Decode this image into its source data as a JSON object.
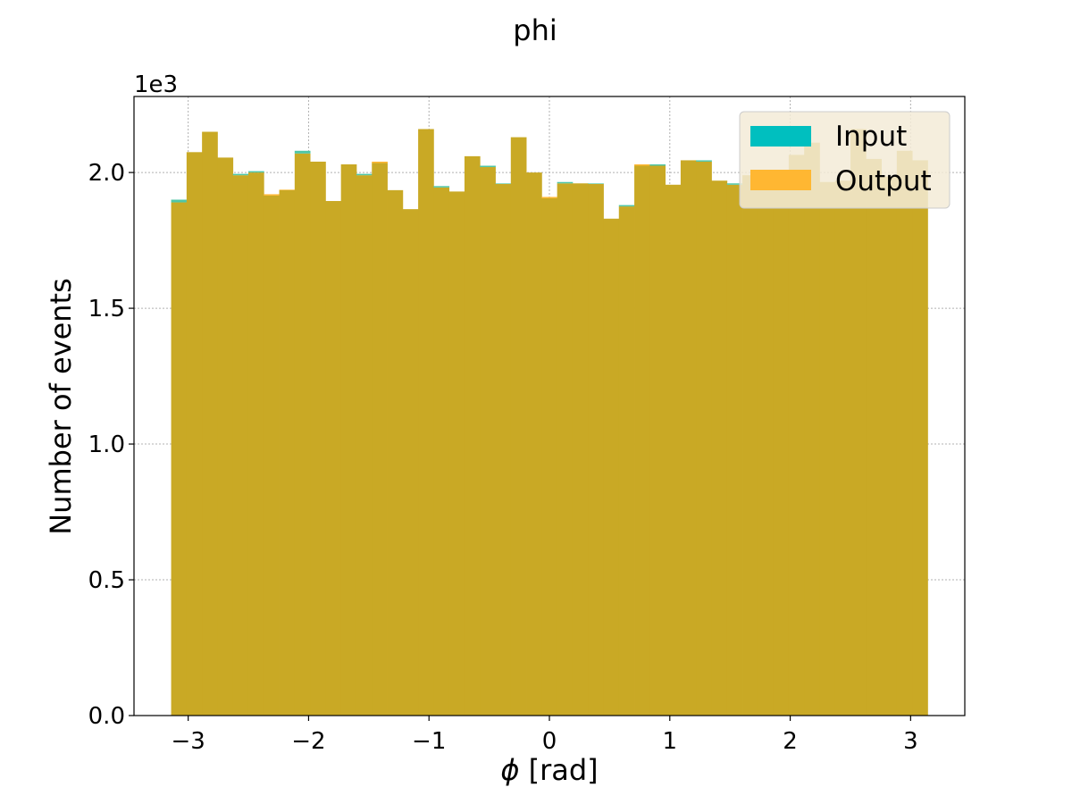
{
  "chart_data": {
    "type": "bar",
    "title": "phi",
    "xlabel_symbol": "ϕ",
    "xlabel_unit": " [rad]",
    "ylabel": "Number of events",
    "y_offset_label": "1e3",
    "y_scale": 1000,
    "xlim": [
      -3.45,
      3.45
    ],
    "ylim": [
      0,
      2280
    ],
    "bin_range": [
      -3.1416,
      3.1416
    ],
    "xticks": [
      -3,
      -2,
      -1,
      0,
      1,
      2,
      3
    ],
    "xtick_labels": [
      "−3",
      "−2",
      "−1",
      "0",
      "1",
      "2",
      "3"
    ],
    "yticks": [
      0,
      500,
      1000,
      1500,
      2000
    ],
    "ytick_labels": [
      "0.0",
      "0.5",
      "1.0",
      "1.5",
      "2.0"
    ],
    "grid": true,
    "legend_position": "top-right",
    "colors": {
      "input": "#00bfbf",
      "output": "#ffa500",
      "overlap": "#c9a925",
      "output_only": "#ffb732",
      "input_only": "#4fc6a5",
      "legend_bg": "#f3ebd7"
    },
    "series": [
      {
        "name": "Input",
        "values": [
          1900,
          2075,
          2150,
          2055,
          1995,
          2005,
          1915,
          1935,
          2080,
          2040,
          1895,
          2030,
          1995,
          2035,
          1935,
          1865,
          2160,
          1950,
          1930,
          2060,
          2025,
          1960,
          2130,
          2000,
          1905,
          1965,
          1960,
          1960,
          1830,
          1880,
          2025,
          2030,
          1955,
          2045,
          2045,
          1970,
          1960,
          1990,
          1995,
          2010,
          2065,
          2110,
          1965,
          1970,
          2160,
          2050,
          1985,
          2080,
          2045
        ]
      },
      {
        "name": "Output",
        "values": [
          1890,
          2075,
          2150,
          2055,
          1990,
          2000,
          1920,
          1937,
          2070,
          2040,
          1895,
          2030,
          1990,
          2040,
          1935,
          1865,
          2160,
          1945,
          1930,
          2060,
          2020,
          1958,
          2130,
          2000,
          1910,
          1960,
          1960,
          1958,
          1830,
          1875,
          2030,
          2025,
          1955,
          2045,
          2040,
          1970,
          1955,
          1990,
          1995,
          2010,
          2065,
          2110,
          1965,
          1970,
          2160,
          2050,
          1985,
          2080,
          2045
        ]
      }
    ]
  }
}
